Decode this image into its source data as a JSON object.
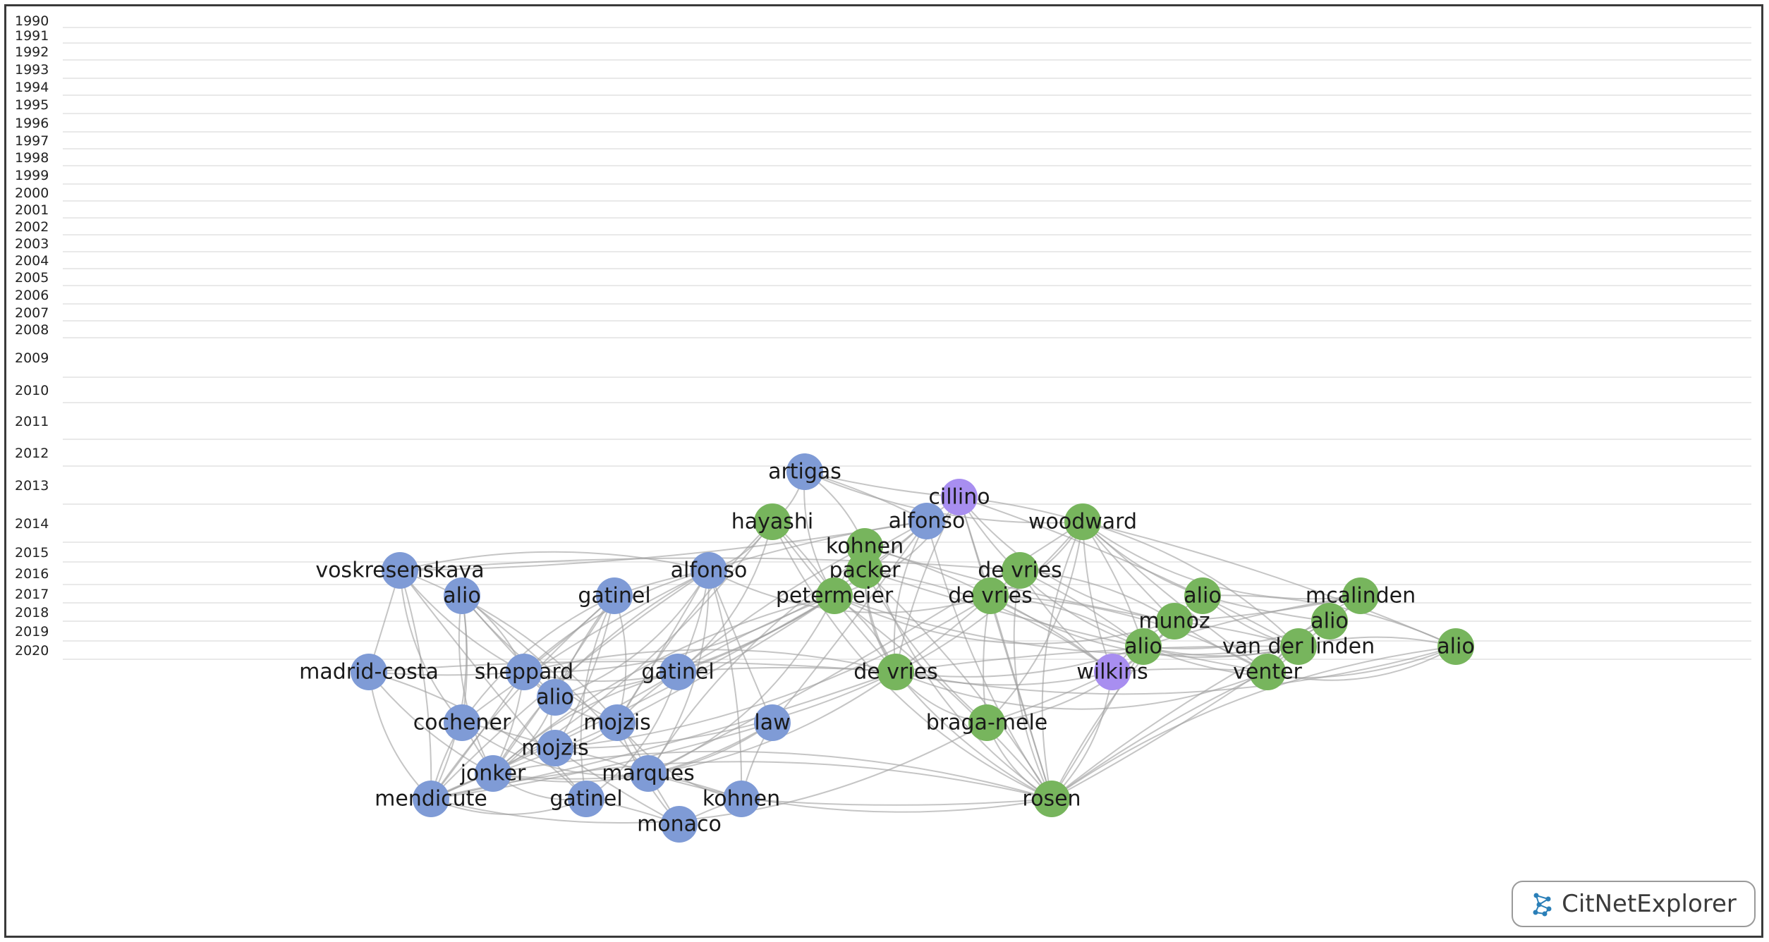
{
  "years": [
    "1990",
    "1991",
    "1992",
    "1993",
    "1994",
    "1995",
    "1996",
    "1997",
    "1998",
    "1999",
    "2000",
    "2001",
    "2002",
    "2003",
    "2004",
    "2005",
    "2006",
    "2007",
    "2008",
    "2009",
    "2010",
    "2011",
    "2012",
    "2013",
    "2014",
    "2015",
    "2016",
    "2017",
    "2018",
    "2019",
    "2020"
  ],
  "colors": {
    "blue": "#7f9bd6",
    "green": "#77b55d",
    "purple": "#a88ef0",
    "edge": "#9e9e9e"
  },
  "nodes": [
    {
      "id": "artigas",
      "label": "artigas",
      "year": "2007",
      "color": "blue"
    },
    {
      "id": "cillino",
      "label": "cillino",
      "year": "2008",
      "color": "purple"
    },
    {
      "id": "hayashi",
      "label": "hayashi",
      "year": "2009",
      "color": "green"
    },
    {
      "id": "alfonso09",
      "label": "alfonso",
      "year": "2009",
      "color": "blue"
    },
    {
      "id": "woodward",
      "label": "woodward",
      "year": "2009",
      "color": "green"
    },
    {
      "id": "kohnen10",
      "label": "kohnen",
      "year": "2010",
      "color": "green"
    },
    {
      "id": "voskresenskaya",
      "label": "voskresenskaya",
      "year": "2010",
      "color": "blue"
    },
    {
      "id": "alfonso10",
      "label": "alfonso",
      "year": "2010",
      "color": "blue"
    },
    {
      "id": "packer",
      "label": "packer",
      "year": "2010",
      "color": "green"
    },
    {
      "id": "devries10",
      "label": "de vries",
      "year": "2010",
      "color": "green"
    },
    {
      "id": "alio11a",
      "label": "alio",
      "year": "2011",
      "color": "blue"
    },
    {
      "id": "gatinel11",
      "label": "gatinel",
      "year": "2011",
      "color": "blue"
    },
    {
      "id": "petermeier",
      "label": "petermeier",
      "year": "2011",
      "color": "green"
    },
    {
      "id": "devries11",
      "label": "de vries",
      "year": "2011",
      "color": "green"
    },
    {
      "id": "alio11b",
      "label": "alio",
      "year": "2011",
      "color": "green"
    },
    {
      "id": "mcalinden",
      "label": "mcalinden",
      "year": "2011",
      "color": "green"
    },
    {
      "id": "munoz",
      "label": "munoz",
      "year": "2011",
      "color": "green"
    },
    {
      "id": "alio11c",
      "label": "alio",
      "year": "2011",
      "color": "green"
    },
    {
      "id": "alio12a",
      "label": "alio",
      "year": "2012",
      "color": "green"
    },
    {
      "id": "vanderlinden",
      "label": "van der linden",
      "year": "2012",
      "color": "green"
    },
    {
      "id": "alio12b",
      "label": "alio",
      "year": "2012",
      "color": "green"
    },
    {
      "id": "madridcosta",
      "label": "madrid-costa",
      "year": "2013",
      "color": "blue"
    },
    {
      "id": "sheppard",
      "label": "sheppard",
      "year": "2013",
      "color": "blue"
    },
    {
      "id": "gatinel13",
      "label": "gatinel",
      "year": "2013",
      "color": "blue"
    },
    {
      "id": "devries13",
      "label": "de vries",
      "year": "2013",
      "color": "green"
    },
    {
      "id": "wilkins",
      "label": "wilkins",
      "year": "2013",
      "color": "purple"
    },
    {
      "id": "venter",
      "label": "venter",
      "year": "2013",
      "color": "green"
    },
    {
      "id": "alio13",
      "label": "alio",
      "year": "2013",
      "color": "blue"
    },
    {
      "id": "cochener",
      "label": "cochener",
      "year": "2014",
      "color": "blue"
    },
    {
      "id": "mojzis14a",
      "label": "mojzis",
      "year": "2014",
      "color": "blue"
    },
    {
      "id": "law",
      "label": "law",
      "year": "2014",
      "color": "blue"
    },
    {
      "id": "bragamele",
      "label": "braga-mele",
      "year": "2014",
      "color": "green"
    },
    {
      "id": "mojzis14b",
      "label": "mojzis",
      "year": "2014",
      "color": "blue"
    },
    {
      "id": "jonker",
      "label": "jonker",
      "year": "2015",
      "color": "blue"
    },
    {
      "id": "marques",
      "label": "marques",
      "year": "2015",
      "color": "blue"
    },
    {
      "id": "mendicute",
      "label": "mendicute",
      "year": "2016",
      "color": "blue"
    },
    {
      "id": "gatinel16",
      "label": "gatinel",
      "year": "2016",
      "color": "blue"
    },
    {
      "id": "kohnen16",
      "label": "kohnen",
      "year": "2016",
      "color": "blue"
    },
    {
      "id": "rosen",
      "label": "rosen",
      "year": "2016",
      "color": "green"
    },
    {
      "id": "monaco",
      "label": "monaco",
      "year": "2017",
      "color": "blue"
    }
  ],
  "edges": [
    [
      "artigas",
      "hayashi"
    ],
    [
      "artigas",
      "alfonso09"
    ],
    [
      "artigas",
      "cillino"
    ],
    [
      "artigas",
      "woodward"
    ],
    [
      "artigas",
      "petermeier"
    ],
    [
      "artigas",
      "kohnen10"
    ],
    [
      "cillino",
      "woodward"
    ],
    [
      "cillino",
      "devries11"
    ],
    [
      "cillino",
      "alfonso09"
    ],
    [
      "cillino",
      "munoz"
    ],
    [
      "cillino",
      "petermeier"
    ],
    [
      "cillino",
      "vanderlinden"
    ],
    [
      "cillino",
      "rosen"
    ],
    [
      "cillino",
      "devries13"
    ],
    [
      "cillino",
      "alio12a"
    ],
    [
      "hayashi",
      "alfonso10"
    ],
    [
      "hayashi",
      "petermeier"
    ],
    [
      "hayashi",
      "devries13"
    ],
    [
      "hayashi",
      "mojzis14a"
    ],
    [
      "hayashi",
      "rosen"
    ],
    [
      "hayashi",
      "gatinel13"
    ],
    [
      "hayashi",
      "jonker"
    ],
    [
      "alfonso09",
      "voskresenskaya"
    ],
    [
      "alfonso09",
      "alfonso10"
    ],
    [
      "alfonso09",
      "devries13"
    ],
    [
      "alfonso09",
      "sheppard"
    ],
    [
      "alfonso09",
      "gatinel13"
    ],
    [
      "alfonso09",
      "law"
    ],
    [
      "alfonso09",
      "rosen"
    ],
    [
      "alfonso09",
      "marques"
    ],
    [
      "woodward",
      "devries11"
    ],
    [
      "woodward",
      "alio12a"
    ],
    [
      "woodward",
      "munoz"
    ],
    [
      "woodward",
      "alio11b"
    ],
    [
      "woodward",
      "mcalinden"
    ],
    [
      "woodward",
      "vanderlinden"
    ],
    [
      "woodward",
      "alio12b"
    ],
    [
      "woodward",
      "venter"
    ],
    [
      "woodward",
      "wilkins"
    ],
    [
      "woodward",
      "rosen"
    ],
    [
      "woodward",
      "bragamele"
    ],
    [
      "woodward",
      "devries13"
    ],
    [
      "woodward",
      "marques"
    ],
    [
      "kohnen10",
      "petermeier"
    ],
    [
      "kohnen10",
      "devries13"
    ],
    [
      "kohnen10",
      "packer"
    ],
    [
      "kohnen10",
      "devries11"
    ],
    [
      "kohnen10",
      "munoz"
    ],
    [
      "kohnen10",
      "gatinel13"
    ],
    [
      "kohnen10",
      "rosen"
    ],
    [
      "voskresenskaya",
      "alfonso10"
    ],
    [
      "voskresenskaya",
      "devries10"
    ],
    [
      "voskresenskaya",
      "madridcosta"
    ],
    [
      "voskresenskaya",
      "sheppard"
    ],
    [
      "voskresenskaya",
      "cochener"
    ],
    [
      "voskresenskaya",
      "mojzis14a"
    ],
    [
      "voskresenskaya",
      "mendicute"
    ],
    [
      "voskresenskaya",
      "gatinel16"
    ],
    [
      "alfonso10",
      "gatinel11"
    ],
    [
      "alfonso10",
      "sheppard"
    ],
    [
      "alfonso10",
      "alio13"
    ],
    [
      "alfonso10",
      "gatinel13"
    ],
    [
      "alfonso10",
      "mojzis14a"
    ],
    [
      "alfonso10",
      "cochener"
    ],
    [
      "alfonso10",
      "jonker"
    ],
    [
      "alfonso10",
      "marques"
    ],
    [
      "alfonso10",
      "kohnen16"
    ],
    [
      "alfonso10",
      "law"
    ],
    [
      "alfonso10",
      "mendicute"
    ],
    [
      "alfonso10",
      "devries11"
    ],
    [
      "packer",
      "wilkins"
    ],
    [
      "packer",
      "rosen"
    ],
    [
      "packer",
      "venter"
    ],
    [
      "packer",
      "bragamele"
    ],
    [
      "packer",
      "devries13"
    ],
    [
      "devries10",
      "munoz"
    ],
    [
      "devries10",
      "alio12a"
    ],
    [
      "devries10",
      "devries13"
    ],
    [
      "devries10",
      "wilkins"
    ],
    [
      "devries10",
      "rosen"
    ],
    [
      "alio11a",
      "sheppard"
    ],
    [
      "alio11a",
      "cochener"
    ],
    [
      "alio11a",
      "alio13"
    ],
    [
      "alio11a",
      "mojzis14a"
    ],
    [
      "alio11a",
      "jonker"
    ],
    [
      "alio11a",
      "mendicute"
    ],
    [
      "alio11a",
      "marques"
    ],
    [
      "gatinel11",
      "sheppard"
    ],
    [
      "gatinel11",
      "alio13"
    ],
    [
      "gatinel11",
      "cochener"
    ],
    [
      "gatinel11",
      "mojzis14a"
    ],
    [
      "gatinel11",
      "mojzis14b"
    ],
    [
      "gatinel11",
      "jonker"
    ],
    [
      "gatinel11",
      "mendicute"
    ],
    [
      "gatinel11",
      "gatinel16"
    ],
    [
      "petermeier",
      "devries13"
    ],
    [
      "petermeier",
      "alio13"
    ],
    [
      "petermeier",
      "mojzis14a"
    ],
    [
      "petermeier",
      "gatinel13"
    ],
    [
      "petermeier",
      "jonker"
    ],
    [
      "petermeier",
      "marques"
    ],
    [
      "petermeier",
      "rosen"
    ],
    [
      "petermeier",
      "mendicute"
    ],
    [
      "petermeier",
      "vanderlinden"
    ],
    [
      "petermeier",
      "munoz"
    ],
    [
      "devries11",
      "alio12a"
    ],
    [
      "devries11",
      "wilkins"
    ],
    [
      "devries11",
      "rosen"
    ],
    [
      "devries11",
      "bragamele"
    ],
    [
      "devries11",
      "vanderlinden"
    ],
    [
      "devries11",
      "venter"
    ],
    [
      "devries11",
      "mojzis14b"
    ],
    [
      "alio11b",
      "alio11c"
    ],
    [
      "alio11b",
      "vanderlinden"
    ],
    [
      "alio11b",
      "munoz"
    ],
    [
      "alio11b",
      "alio12b"
    ],
    [
      "mcalinden",
      "alio11c"
    ],
    [
      "mcalinden",
      "munoz"
    ],
    [
      "mcalinden",
      "alio12a"
    ],
    [
      "mcalinden",
      "venter"
    ],
    [
      "munoz",
      "alio12a"
    ],
    [
      "munoz",
      "vanderlinden"
    ],
    [
      "munoz",
      "venter"
    ],
    [
      "munoz",
      "rosen"
    ],
    [
      "munoz",
      "wilkins"
    ],
    [
      "munoz",
      "bragamele"
    ],
    [
      "alio11c",
      "alio12a"
    ],
    [
      "alio11c",
      "vanderlinden"
    ],
    [
      "alio11c",
      "rosen"
    ],
    [
      "alio11c",
      "venter"
    ],
    [
      "alio12a",
      "wilkins"
    ],
    [
      "alio12a",
      "devries13"
    ],
    [
      "alio12a",
      "rosen"
    ],
    [
      "alio12a",
      "vanderlinden"
    ],
    [
      "alio12a",
      "alio12b"
    ],
    [
      "vanderlinden",
      "alio12b"
    ],
    [
      "vanderlinden",
      "venter"
    ],
    [
      "vanderlinden",
      "rosen"
    ],
    [
      "vanderlinden",
      "devries13"
    ],
    [
      "alio12b",
      "rosen"
    ],
    [
      "alio12b",
      "venter"
    ],
    [
      "alio12b",
      "devries13"
    ],
    [
      "madridcosta",
      "sheppard"
    ],
    [
      "madridcosta",
      "jonker"
    ],
    [
      "madridcosta",
      "mendicute"
    ],
    [
      "madridcosta",
      "gatinel16"
    ],
    [
      "madridcosta",
      "devries13"
    ],
    [
      "sheppard",
      "alio13"
    ],
    [
      "sheppard",
      "gatinel13"
    ],
    [
      "sheppard",
      "mojzis14a"
    ],
    [
      "sheppard",
      "devries13"
    ],
    [
      "sheppard",
      "jonker"
    ],
    [
      "sheppard",
      "mendicute"
    ],
    [
      "gatinel13",
      "mojzis14a"
    ],
    [
      "gatinel13",
      "jonker"
    ],
    [
      "gatinel13",
      "gatinel16"
    ],
    [
      "gatinel13",
      "devries13"
    ],
    [
      "gatinel13",
      "mendicute"
    ],
    [
      "devries13",
      "rosen"
    ],
    [
      "devries13",
      "bragamele"
    ],
    [
      "devries13",
      "jonker"
    ],
    [
      "devries13",
      "mojzis14b"
    ],
    [
      "devries13",
      "mendicute"
    ],
    [
      "devries13",
      "wilkins"
    ],
    [
      "devries13",
      "venter"
    ],
    [
      "wilkins",
      "rosen"
    ],
    [
      "wilkins",
      "venter"
    ],
    [
      "wilkins",
      "bragamele"
    ],
    [
      "venter",
      "rosen"
    ],
    [
      "alio13",
      "mojzis14b"
    ],
    [
      "alio13",
      "jonker"
    ],
    [
      "cochener",
      "mojzis14b"
    ],
    [
      "cochener",
      "jonker"
    ],
    [
      "cochener",
      "mendicute"
    ],
    [
      "cochener",
      "marques"
    ],
    [
      "mojzis14a",
      "mojzis14b"
    ],
    [
      "mojzis14a",
      "marques"
    ],
    [
      "mojzis14a",
      "jonker"
    ],
    [
      "mojzis14a",
      "monaco"
    ],
    [
      "mojzis14a",
      "kohnen16"
    ],
    [
      "law",
      "jonker"
    ],
    [
      "law",
      "marques"
    ],
    [
      "law",
      "mendicute"
    ],
    [
      "law",
      "kohnen16"
    ],
    [
      "bragamele",
      "rosen"
    ],
    [
      "bragamele",
      "mendicute"
    ],
    [
      "mojzis14b",
      "marques"
    ],
    [
      "mojzis14b",
      "monaco"
    ],
    [
      "jonker",
      "mendicute"
    ],
    [
      "jonker",
      "gatinel16"
    ],
    [
      "jonker",
      "rosen"
    ],
    [
      "marques",
      "kohnen16"
    ],
    [
      "marques",
      "monaco"
    ],
    [
      "marques",
      "rosen"
    ],
    [
      "mendicute",
      "gatinel16"
    ],
    [
      "mendicute",
      "rosen"
    ],
    [
      "gatinel16",
      "monaco"
    ],
    [
      "kohnen16",
      "rosen"
    ],
    [
      "kohnen16",
      "monaco"
    ]
  ],
  "badge": {
    "text": "CitNetExplorer"
  }
}
